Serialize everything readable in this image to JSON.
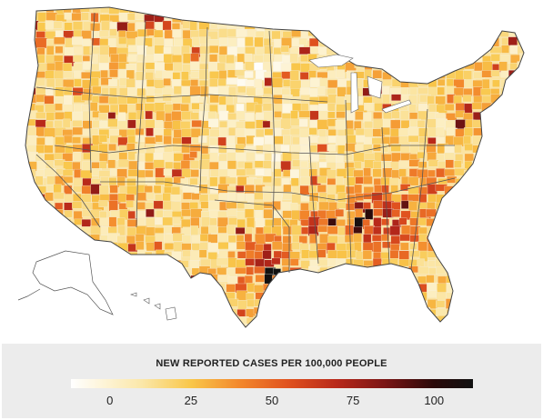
{
  "map": {
    "type": "choropleth",
    "region": "United States (counties)",
    "metric_title": "NEW REPORTED CASES PER 100,000 PEOPLE",
    "hotspot_areas": [
      "Texas",
      "Arkansas",
      "Tennessee",
      "Alabama",
      "Georgia",
      "South Carolina",
      "North Carolina"
    ],
    "lighter_areas": [
      "Minnesota",
      "North Dakota",
      "Nebraska",
      "Kansas",
      "Iowa",
      "Illinois"
    ]
  },
  "legend": {
    "title": "NEW REPORTED CASES PER 100,000 PEOPLE",
    "ticks": [
      {
        "value": 0,
        "label": "0"
      },
      {
        "value": 25,
        "label": "25"
      },
      {
        "value": 50,
        "label": "50"
      },
      {
        "value": 75,
        "label": "75"
      },
      {
        "value": 100,
        "label": "100"
      }
    ],
    "range": [
      -12,
      112
    ],
    "color_stops": [
      {
        "value": -12,
        "color": "#ffffff"
      },
      {
        "value": 10,
        "color": "#fbe7a8"
      },
      {
        "value": 25,
        "color": "#f9c74a"
      },
      {
        "value": 40,
        "color": "#f3882c"
      },
      {
        "value": 55,
        "color": "#e0521f"
      },
      {
        "value": 70,
        "color": "#b8281a"
      },
      {
        "value": 85,
        "color": "#7a1515"
      },
      {
        "value": 100,
        "color": "#2a0a0a"
      },
      {
        "value": 112,
        "color": "#111111"
      }
    ]
  },
  "colors": {
    "background": "#ffffff",
    "legend_panel": "#ececec",
    "state_border": "#555555",
    "land_outline": "#444444"
  }
}
